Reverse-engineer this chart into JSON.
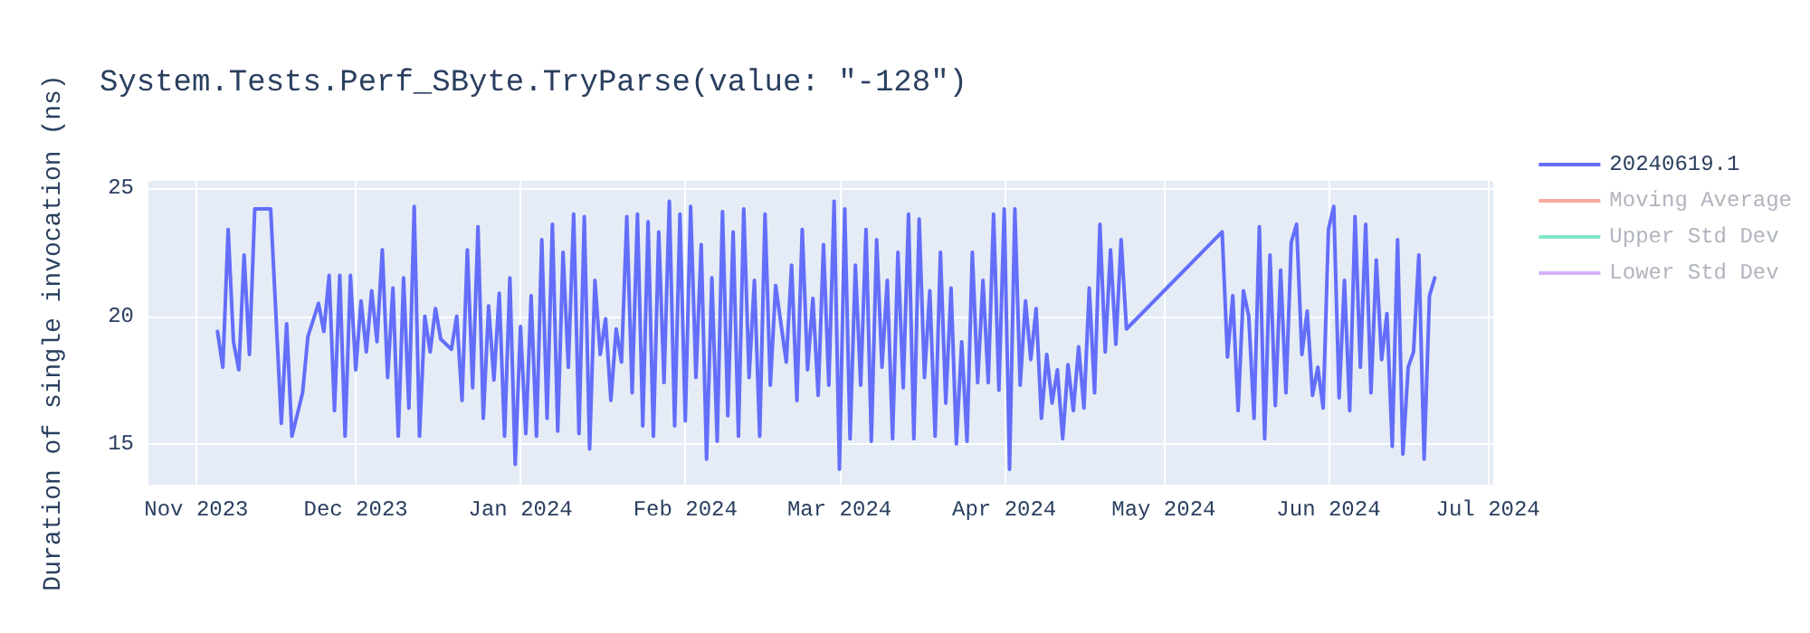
{
  "chart_data": {
    "type": "line",
    "title": "System.Tests.Perf_SByte.TryParse(value: \"-128\")",
    "ylabel": "Duration of single invocation (ns)",
    "x": [
      "2023-11-05",
      "2023-11-06",
      "2023-11-07",
      "2023-11-08",
      "2023-11-09",
      "2023-11-10",
      "2023-11-11",
      "2023-11-12",
      "2023-11-15",
      "2023-11-17",
      "2023-11-18",
      "2023-11-19",
      "2023-11-21",
      "2023-11-22",
      "2023-11-24",
      "2023-11-25",
      "2023-11-26",
      "2023-11-27",
      "2023-11-28",
      "2023-11-29",
      "2023-11-30",
      "2023-12-01",
      "2023-12-02",
      "2023-12-03",
      "2023-12-04",
      "2023-12-05",
      "2023-12-06",
      "2023-12-07",
      "2023-12-08",
      "2023-12-09",
      "2023-12-10",
      "2023-12-11",
      "2023-12-12",
      "2023-12-13",
      "2023-12-14",
      "2023-12-15",
      "2023-12-16",
      "2023-12-17",
      "2023-12-19",
      "2023-12-20",
      "2023-12-21",
      "2023-12-22",
      "2023-12-23",
      "2023-12-24",
      "2023-12-25",
      "2023-12-26",
      "2023-12-27",
      "2023-12-28",
      "2023-12-29",
      "2023-12-30",
      "2023-12-31",
      "2024-01-01",
      "2024-01-02",
      "2024-01-03",
      "2024-01-04",
      "2024-01-05",
      "2024-01-06",
      "2024-01-07",
      "2024-01-08",
      "2024-01-09",
      "2024-01-10",
      "2024-01-11",
      "2024-01-12",
      "2024-01-13",
      "2024-01-14",
      "2024-01-15",
      "2024-01-16",
      "2024-01-17",
      "2024-01-18",
      "2024-01-19",
      "2024-01-20",
      "2024-01-21",
      "2024-01-22",
      "2024-01-23",
      "2024-01-24",
      "2024-01-25",
      "2024-01-26",
      "2024-01-27",
      "2024-01-28",
      "2024-01-29",
      "2024-01-30",
      "2024-01-31",
      "2024-02-01",
      "2024-02-02",
      "2024-02-03",
      "2024-02-04",
      "2024-02-05",
      "2024-02-06",
      "2024-02-07",
      "2024-02-08",
      "2024-02-09",
      "2024-02-10",
      "2024-02-11",
      "2024-02-12",
      "2024-02-13",
      "2024-02-14",
      "2024-02-15",
      "2024-02-16",
      "2024-02-17",
      "2024-02-18",
      "2024-02-20",
      "2024-02-21",
      "2024-02-22",
      "2024-02-23",
      "2024-02-24",
      "2024-02-25",
      "2024-02-26",
      "2024-02-27",
      "2024-02-28",
      "2024-02-29",
      "2024-03-01",
      "2024-03-02",
      "2024-03-03",
      "2024-03-04",
      "2024-03-05",
      "2024-03-06",
      "2024-03-07",
      "2024-03-08",
      "2024-03-09",
      "2024-03-10",
      "2024-03-11",
      "2024-03-12",
      "2024-03-13",
      "2024-03-14",
      "2024-03-15",
      "2024-03-16",
      "2024-03-17",
      "2024-03-18",
      "2024-03-19",
      "2024-03-20",
      "2024-03-21",
      "2024-03-22",
      "2024-03-23",
      "2024-03-24",
      "2024-03-25",
      "2024-03-26",
      "2024-03-27",
      "2024-03-28",
      "2024-03-29",
      "2024-03-30",
      "2024-03-31",
      "2024-04-01",
      "2024-04-02",
      "2024-04-03",
      "2024-04-04",
      "2024-04-05",
      "2024-04-06",
      "2024-04-07",
      "2024-04-08",
      "2024-04-09",
      "2024-04-10",
      "2024-04-11",
      "2024-04-12",
      "2024-04-13",
      "2024-04-14",
      "2024-04-15",
      "2024-04-16",
      "2024-04-17",
      "2024-04-18",
      "2024-04-19",
      "2024-04-20",
      "2024-04-21",
      "2024-04-22",
      "2024-04-23",
      "2024-04-24",
      "2024-05-12",
      "2024-05-13",
      "2024-05-14",
      "2024-05-15",
      "2024-05-16",
      "2024-05-17",
      "2024-05-18",
      "2024-05-19",
      "2024-05-20",
      "2024-05-21",
      "2024-05-22",
      "2024-05-23",
      "2024-05-24",
      "2024-05-25",
      "2024-05-26",
      "2024-05-27",
      "2024-05-28",
      "2024-05-29",
      "2024-05-30",
      "2024-05-31",
      "2024-06-01",
      "2024-06-02",
      "2024-06-03",
      "2024-06-04",
      "2024-06-05",
      "2024-06-06",
      "2024-06-07",
      "2024-06-08",
      "2024-06-09",
      "2024-06-10",
      "2024-06-11",
      "2024-06-12",
      "2024-06-13",
      "2024-06-14",
      "2024-06-15",
      "2024-06-16",
      "2024-06-17",
      "2024-06-18",
      "2024-06-19",
      "2024-06-20",
      "2024-06-21"
    ],
    "series": [
      {
        "name": "20240619.1",
        "color": "#636efa",
        "values": [
          19.4,
          18.0,
          23.4,
          19.0,
          17.9,
          22.4,
          18.5,
          24.2,
          24.2,
          15.8,
          19.7,
          15.3,
          17.0,
          19.2,
          20.5,
          19.4,
          21.6,
          16.3,
          21.6,
          15.3,
          21.6,
          17.9,
          20.6,
          18.6,
          21.0,
          19.0,
          22.6,
          17.6,
          21.1,
          15.3,
          21.5,
          16.4,
          24.3,
          15.3,
          20.0,
          18.6,
          20.3,
          19.1,
          18.7,
          20.0,
          16.7,
          22.6,
          17.2,
          23.5,
          16.0,
          20.4,
          17.5,
          20.9,
          15.3,
          21.5,
          14.2,
          19.6,
          15.4,
          20.8,
          15.3,
          23.0,
          16.0,
          23.6,
          15.5,
          22.5,
          18.0,
          24.0,
          15.4,
          23.9,
          14.8,
          21.4,
          18.5,
          19.9,
          16.7,
          19.5,
          18.2,
          23.9,
          17.0,
          24.0,
          15.7,
          23.7,
          15.3,
          23.3,
          17.4,
          24.5,
          15.7,
          24.0,
          15.9,
          24.3,
          17.6,
          22.8,
          14.4,
          21.5,
          15.1,
          24.1,
          16.1,
          23.3,
          15.3,
          24.2,
          17.6,
          21.4,
          15.3,
          24.0,
          17.3,
          21.2,
          18.2,
          22.0,
          16.7,
          23.4,
          17.9,
          20.7,
          16.9,
          22.8,
          17.3,
          24.5,
          14.0,
          24.2,
          15.2,
          22.0,
          17.3,
          23.4,
          15.1,
          23.0,
          18.0,
          21.4,
          15.2,
          22.5,
          17.2,
          24.0,
          15.2,
          23.8,
          17.6,
          21.0,
          15.3,
          22.5,
          16.6,
          21.1,
          15.0,
          19.0,
          15.1,
          22.5,
          17.4,
          21.4,
          17.4,
          24.0,
          17.1,
          24.2,
          14.0,
          24.2,
          17.3,
          20.6,
          18.3,
          20.3,
          16.0,
          18.5,
          16.6,
          17.9,
          15.2,
          18.1,
          16.3,
          18.8,
          16.4,
          21.1,
          17.0,
          23.6,
          18.6,
          22.6,
          18.9,
          23.0,
          19.5,
          23.3,
          18.4,
          20.8,
          16.3,
          21.0,
          20.0,
          16.0,
          23.5,
          15.2,
          22.4,
          16.5,
          21.8,
          17.0,
          22.9,
          23.6,
          18.5,
          20.2,
          16.9,
          18.0,
          16.4,
          23.4,
          24.3,
          16.8,
          21.4,
          16.3,
          23.9,
          18.0,
          23.6,
          17.0,
          22.2,
          18.3,
          20.1,
          14.9,
          23.0,
          14.6,
          18.0,
          18.6,
          22.4,
          14.4,
          20.8,
          21.5
        ]
      },
      {
        "name": "Moving Average",
        "color": "#ef553b",
        "values": [
          null,
          null,
          null,
          null,
          null,
          null,
          null,
          null,
          null,
          null,
          null,
          null,
          null,
          null,
          null,
          null,
          null,
          null,
          null,
          null,
          null,
          null,
          null,
          null,
          null,
          null,
          null,
          null,
          null,
          null,
          null,
          null,
          null,
          null,
          null,
          null,
          null,
          null,
          null,
          null,
          null,
          null,
          null,
          null,
          null,
          null,
          null,
          null,
          null,
          null,
          null,
          null,
          null,
          null,
          null,
          null,
          null,
          null,
          null,
          null,
          null,
          null,
          null,
          null,
          null,
          null,
          null,
          null,
          null,
          null,
          null,
          null,
          null,
          null,
          null,
          null,
          null,
          null,
          null,
          null,
          null,
          null,
          null,
          null,
          null,
          null,
          null,
          null,
          null,
          null,
          null,
          null,
          null,
          null,
          null,
          null,
          null,
          null,
          null,
          null,
          null,
          null,
          null,
          null,
          null,
          null,
          null,
          null,
          null,
          null,
          null,
          null,
          null,
          null,
          null,
          null,
          null,
          null,
          null,
          null,
          null,
          null,
          null,
          null,
          null,
          null,
          null,
          null,
          null,
          null,
          null,
          null,
          null,
          null,
          null,
          null,
          null,
          null,
          null,
          null,
          null,
          null,
          null,
          null,
          null,
          null,
          null,
          null,
          null,
          null,
          null,
          null,
          null,
          null,
          null,
          null,
          null,
          null,
          null,
          null,
          null,
          null,
          null,
          null,
          null,
          null,
          null,
          null,
          null,
          null,
          null,
          null,
          null,
          null,
          null,
          null,
          null,
          null,
          null,
          null,
          null,
          null,
          null,
          null,
          null,
          null,
          null,
          null,
          null,
          null,
          null,
          null,
          null,
          null,
          null,
          null,
          null,
          null,
          null,
          null,
          null,
          null,
          null,
          null,
          null,
          null
        ]
      },
      {
        "name": "Upper Std Dev",
        "color": "#00cc96",
        "values": [
          null,
          null,
          null,
          null,
          null,
          null,
          null,
          null,
          null,
          null,
          null,
          null,
          null,
          null,
          null,
          null,
          null,
          null,
          null,
          null,
          null,
          null,
          null,
          null,
          null,
          null,
          null,
          null,
          null,
          null,
          null,
          null,
          null,
          null,
          null,
          null,
          null,
          null,
          null,
          null,
          null,
          null,
          null,
          null,
          null,
          null,
          null,
          null,
          null,
          null,
          null,
          null,
          null,
          null,
          null,
          null,
          null,
          null,
          null,
          null,
          null,
          null,
          null,
          null,
          null,
          null,
          null,
          null,
          null,
          null,
          null,
          null,
          null,
          null,
          null,
          null,
          null,
          null,
          null,
          null,
          null,
          null,
          null,
          null,
          null,
          null,
          null,
          null,
          null,
          null,
          null,
          null,
          null,
          null,
          null,
          null,
          null,
          null,
          null,
          null,
          null,
          null,
          null,
          null,
          null,
          null,
          null,
          null,
          null,
          null,
          null,
          null,
          null,
          null,
          null,
          null,
          null,
          null,
          null,
          null,
          null,
          null,
          null,
          null,
          null,
          null,
          null,
          null,
          null,
          null,
          null,
          null,
          null,
          null,
          null,
          null,
          null,
          null,
          null,
          null,
          null,
          null,
          null,
          null,
          null,
          null,
          null,
          null,
          null,
          null,
          null,
          null,
          null,
          null,
          null,
          null,
          null,
          null,
          null,
          null,
          null,
          null,
          null,
          null,
          null,
          null,
          null,
          null,
          null,
          null,
          null,
          null,
          null,
          null,
          null,
          null,
          null,
          null,
          null,
          null,
          null,
          null,
          null,
          null,
          null,
          null,
          null,
          null,
          null,
          null,
          null,
          null,
          null,
          null,
          null,
          null,
          null,
          null,
          null,
          null,
          null,
          null,
          null,
          null,
          null,
          null
        ]
      },
      {
        "name": "Lower Std Dev",
        "color": "#ab63fa",
        "values": [
          null,
          null,
          null,
          null,
          null,
          null,
          null,
          null,
          null,
          null,
          null,
          null,
          null,
          null,
          null,
          null,
          null,
          null,
          null,
          null,
          null,
          null,
          null,
          null,
          null,
          null,
          null,
          null,
          null,
          null,
          null,
          null,
          null,
          null,
          null,
          null,
          null,
          null,
          null,
          null,
          null,
          null,
          null,
          null,
          null,
          null,
          null,
          null,
          null,
          null,
          null,
          null,
          null,
          null,
          null,
          null,
          null,
          null,
          null,
          null,
          null,
          null,
          null,
          null,
          null,
          null,
          null,
          null,
          null,
          null,
          null,
          null,
          null,
          null,
          null,
          null,
          null,
          null,
          null,
          null,
          null,
          null,
          null,
          null,
          null,
          null,
          null,
          null,
          null,
          null,
          null,
          null,
          null,
          null,
          null,
          null,
          null,
          null,
          null,
          null,
          null,
          null,
          null,
          null,
          null,
          null,
          null,
          null,
          null,
          null,
          null,
          null,
          null,
          null,
          null,
          null,
          null,
          null,
          null,
          null,
          null,
          null,
          null,
          null,
          null,
          null,
          null,
          null,
          null,
          null,
          null,
          null,
          null,
          null,
          null,
          null,
          null,
          null,
          null,
          null,
          null,
          null,
          null,
          null,
          null,
          null,
          null,
          null,
          null,
          null,
          null,
          null,
          null,
          null,
          null,
          null,
          null,
          null,
          null,
          null,
          null,
          null,
          null,
          null,
          null,
          null,
          null,
          null,
          null,
          null,
          null,
          null,
          null,
          null,
          null,
          null,
          null,
          null,
          null,
          null,
          null,
          null,
          null,
          null,
          null,
          null,
          null,
          null,
          null,
          null,
          null,
          null,
          null,
          null,
          null,
          null,
          null,
          null,
          null,
          null,
          null,
          null,
          null,
          null,
          null,
          null
        ]
      }
    ],
    "xlim": [
      "2023-10-23",
      "2024-07-02"
    ],
    "xticks": [
      {
        "value": "2023-11-01",
        "label": "Nov 2023"
      },
      {
        "value": "2023-12-01",
        "label": "Dec 2023"
      },
      {
        "value": "2024-01-01",
        "label": "Jan 2024"
      },
      {
        "value": "2024-02-01",
        "label": "Feb 2024"
      },
      {
        "value": "2024-03-01",
        "label": "Mar 2024"
      },
      {
        "value": "2024-04-01",
        "label": "Apr 2024"
      },
      {
        "value": "2024-05-01",
        "label": "May 2024"
      },
      {
        "value": "2024-06-01",
        "label": "Jun 2024"
      },
      {
        "value": "2024-07-01",
        "label": "Jul 2024"
      }
    ],
    "ylim": [
      13.4,
      25.3
    ],
    "yticks": [
      15,
      20,
      25
    ],
    "grid": true,
    "legend": "right",
    "marker": "none",
    "line_style": "solid"
  }
}
